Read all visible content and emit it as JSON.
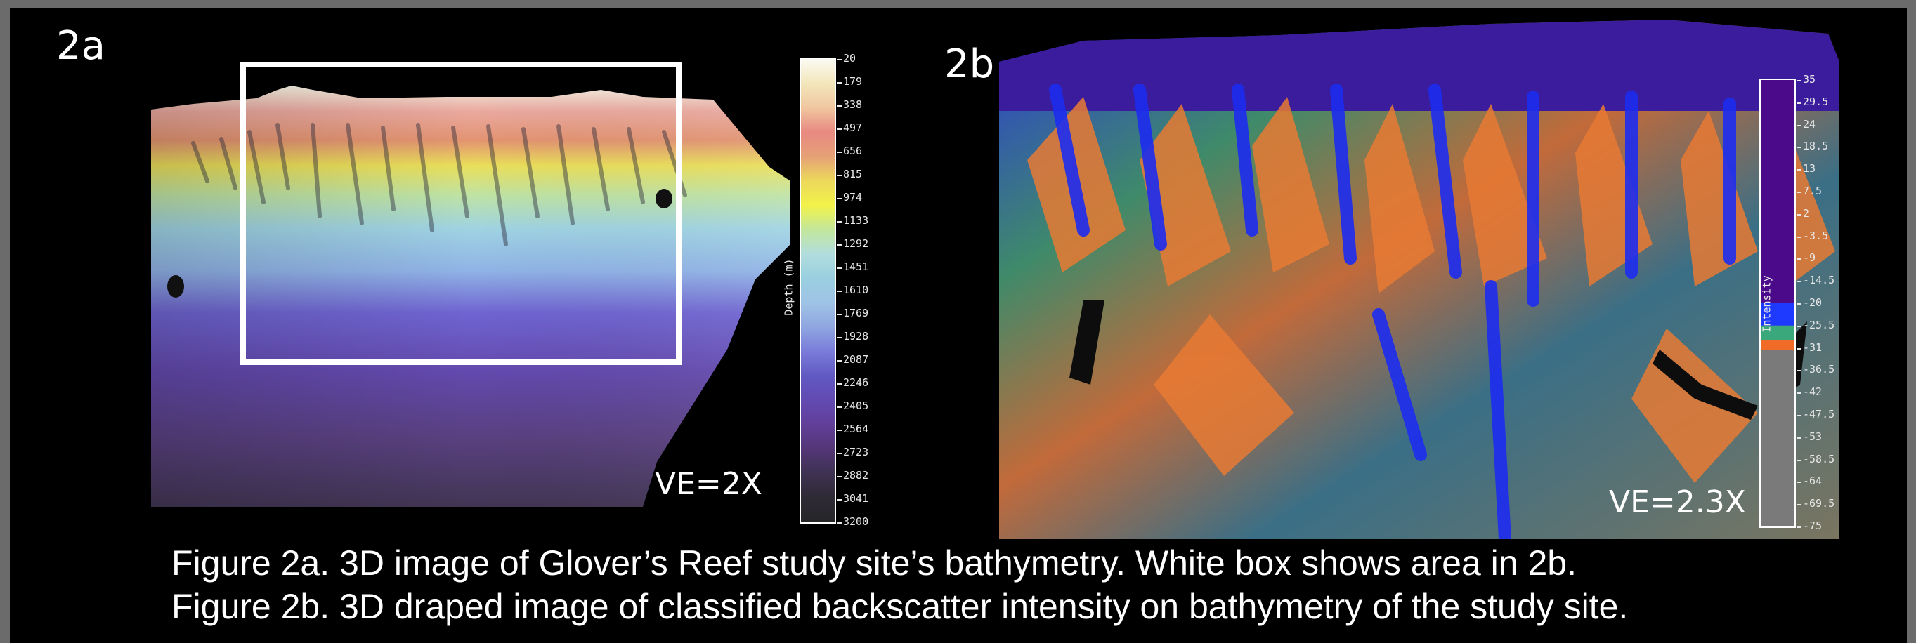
{
  "figure": {
    "panel_a": {
      "label": "2a",
      "ve_text": "VE=2X",
      "legend": {
        "title": "Depth (m)",
        "ticks": [
          "20",
          "179",
          "338",
          "497",
          "656",
          "815",
          "974",
          "1133",
          "1292",
          "1451",
          "1610",
          "1769",
          "1928",
          "2087",
          "2246",
          "2405",
          "2564",
          "2723",
          "2882",
          "3041",
          "3200"
        ],
        "colors": [
          "#fbfbf3",
          "#f3e6bb",
          "#f0c79f",
          "#e88982",
          "#e6a176",
          "#ecd85b",
          "#f2f24a",
          "#c3e79b",
          "#b2ddde",
          "#99cfe0",
          "#9fc3e5",
          "#8fa6e0",
          "#7a7bda",
          "#6159c2",
          "#624ab2",
          "#623f99",
          "#533677",
          "#3e3252",
          "#2e2a35",
          "#262628"
        ]
      }
    },
    "panel_b": {
      "label": "2b",
      "ve_text": "VE=2.3X",
      "legend": {
        "title": "Intensity",
        "ticks": [
          "35",
          "29.5",
          "24",
          "18.5",
          "13",
          "7.5",
          "2",
          "-3.5",
          "-9",
          "-14.5",
          "-20",
          "-25.5",
          "-31",
          "-36.5",
          "-42",
          "-47.5",
          "-53",
          "-58.5",
          "-64",
          "-69.5",
          "-75"
        ],
        "classes": [
          {
            "color": "#4a0a8a",
            "from": 35,
            "to": -20
          },
          {
            "color": "#1f3aff",
            "from": -20,
            "to": -25.5
          },
          {
            "color": "#3aa87a",
            "from": -25.5,
            "to": -29
          },
          {
            "color": "#f06a28",
            "from": -29,
            "to": -31.5
          },
          {
            "color": "#7a7a7a",
            "from": -31.5,
            "to": -75
          }
        ]
      }
    },
    "captions": [
      "Figure 2a. 3D image of Glover’s Reef study site’s bathymetry.  White box shows area in 2b.",
      "Figure 2b. 3D draped image of classified backscatter intensity on bathymetry of the study site."
    ]
  }
}
